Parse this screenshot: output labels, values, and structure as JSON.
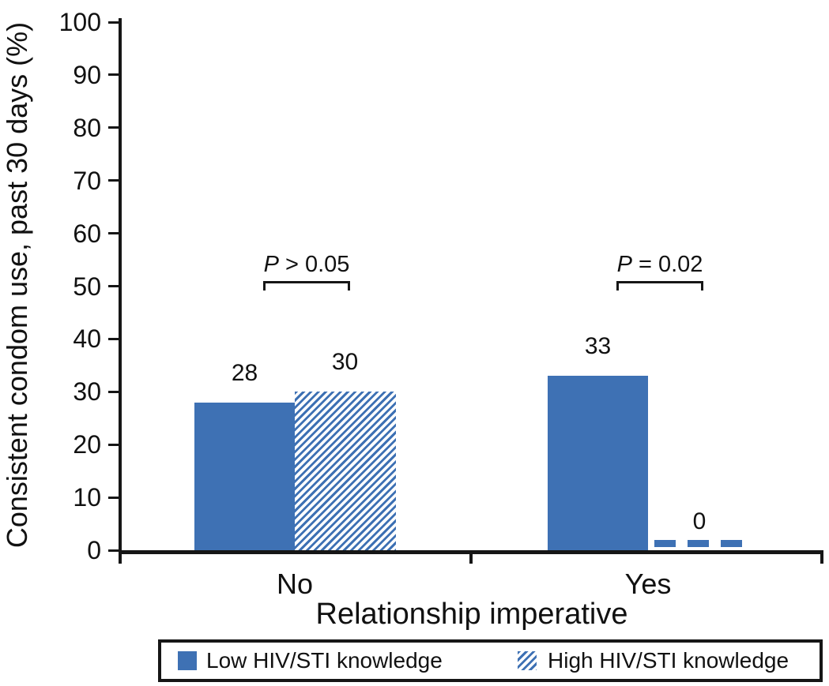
{
  "chart_data": {
    "type": "bar",
    "title": "",
    "xlabel": "Relationship imperative",
    "ylabel": "Consistent condom use, past 30 days (%)",
    "categories": [
      "No",
      "Yes"
    ],
    "series": [
      {
        "name": "Low HIV/STI knowledge",
        "pattern": "solid",
        "color": "#3E71B4",
        "values": [
          28,
          33
        ]
      },
      {
        "name": "High HIV/STI knowledge",
        "pattern": "diagonal-hatch",
        "color": "#3E71B4",
        "values": [
          30,
          0
        ]
      }
    ],
    "annotations": [
      {
        "group": "No",
        "text": "P > 0.05"
      },
      {
        "group": "Yes",
        "text": "P = 0.02"
      }
    ],
    "ylim": [
      0,
      100
    ],
    "ytick_step": 10,
    "grid": false,
    "legend_position": "bottom",
    "bar_value_labels": true,
    "axis_color": "#161616"
  }
}
